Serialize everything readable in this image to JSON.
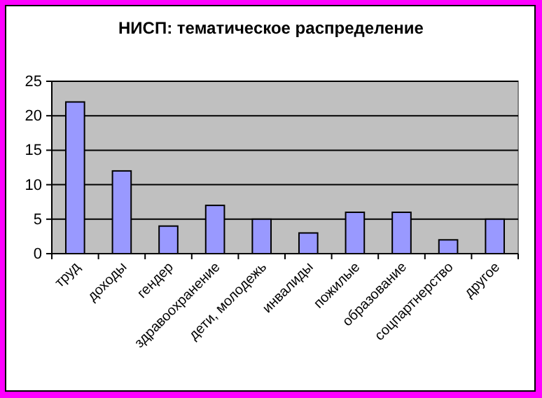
{
  "chart_data": {
    "type": "bar",
    "title": "НИСП: тематическое распределение",
    "categories": [
      "труд",
      "доходы",
      "гендер",
      "здравоохранение",
      "дети, молодежь",
      "инвалиды",
      "пожилые",
      "образование",
      "соцпартнерство",
      "другое"
    ],
    "values": [
      22,
      12,
      4,
      7,
      5,
      3,
      6,
      6,
      2,
      5
    ],
    "color": "#9999ff",
    "ylim": [
      0,
      25
    ],
    "yticks": [
      0,
      5,
      10,
      15,
      20,
      25
    ],
    "grid": "y"
  }
}
